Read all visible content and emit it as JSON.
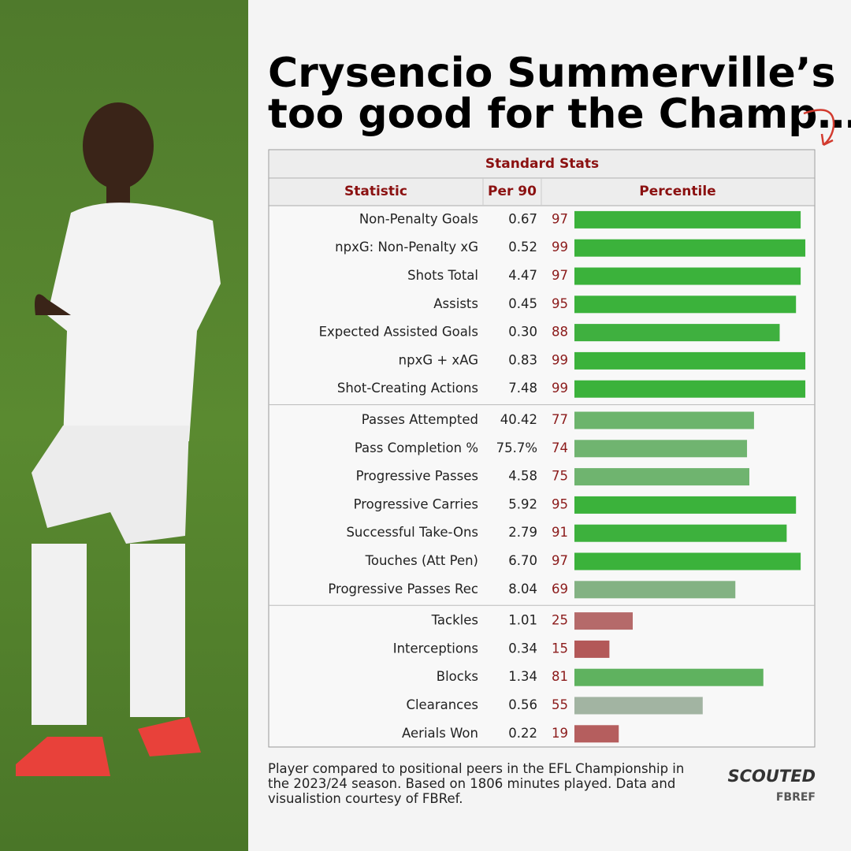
{
  "header": {
    "title_lines": [
      "Crysencio Summerville’s",
      "too good for the Champ…"
    ]
  },
  "table": {
    "caption": "Standard Stats",
    "columns": [
      "Statistic",
      "Per 90",
      "Percentile"
    ],
    "groups": [
      {
        "rows": [
          {
            "statistic": "Non-Penalty Goals",
            "per90": "0.67",
            "percentile": 97,
            "color": "#3bb23b"
          },
          {
            "statistic": "npxG: Non-Penalty xG",
            "per90": "0.52",
            "percentile": 99,
            "color": "#3bb23b"
          },
          {
            "statistic": "Shots Total",
            "per90": "4.47",
            "percentile": 97,
            "color": "#3bb23b"
          },
          {
            "statistic": "Assists",
            "per90": "0.45",
            "percentile": 95,
            "color": "#3bb23b"
          },
          {
            "statistic": "Expected Assisted Goals",
            "per90": "0.30",
            "percentile": 88,
            "color": "#3fb03f"
          },
          {
            "statistic": "npxG + xAG",
            "per90": "0.83",
            "percentile": 99,
            "color": "#3bb23b"
          },
          {
            "statistic": "Shot-Creating Actions",
            "per90": "7.48",
            "percentile": 99,
            "color": "#3bb23b"
          }
        ]
      },
      {
        "rows": [
          {
            "statistic": "Passes Attempted",
            "per90": "40.42",
            "percentile": 77,
            "color": "#6cb46c"
          },
          {
            "statistic": "Pass Completion %",
            "per90": "75.7%",
            "percentile": 74,
            "color": "#70b470"
          },
          {
            "statistic": "Progressive Passes",
            "per90": "4.58",
            "percentile": 75,
            "color": "#6fb46f"
          },
          {
            "statistic": "Progressive Carries",
            "per90": "5.92",
            "percentile": 95,
            "color": "#3bb23b"
          },
          {
            "statistic": "Successful Take-Ons",
            "per90": "2.79",
            "percentile": 91,
            "color": "#3db13d"
          },
          {
            "statistic": "Touches (Att Pen)",
            "per90": "6.70",
            "percentile": 97,
            "color": "#3bb23b"
          },
          {
            "statistic": "Progressive Passes Rec",
            "per90": "8.04",
            "percentile": 69,
            "color": "#83b283"
          }
        ]
      },
      {
        "rows": [
          {
            "statistic": "Tackles",
            "per90": "1.01",
            "percentile": 25,
            "color": "#b56a6a"
          },
          {
            "statistic": "Interceptions",
            "per90": "0.34",
            "percentile": 15,
            "color": "#b35858"
          },
          {
            "statistic": "Blocks",
            "per90": "1.34",
            "percentile": 81,
            "color": "#5fb25f"
          },
          {
            "statistic": "Clearances",
            "per90": "0.56",
            "percentile": 55,
            "color": "#a2b4a2"
          },
          {
            "statistic": "Aerials Won",
            "per90": "0.22",
            "percentile": 19,
            "color": "#b55e5e"
          }
        ]
      }
    ]
  },
  "footer": {
    "note": "Player compared to positional peers in the EFL Championship in the 2023/24 season. Based on 1806 minutes played. Data and visualistion courtesy of FBRef."
  },
  "logo": {
    "brand": "SCOUTED",
    "source": "FBREF"
  }
}
